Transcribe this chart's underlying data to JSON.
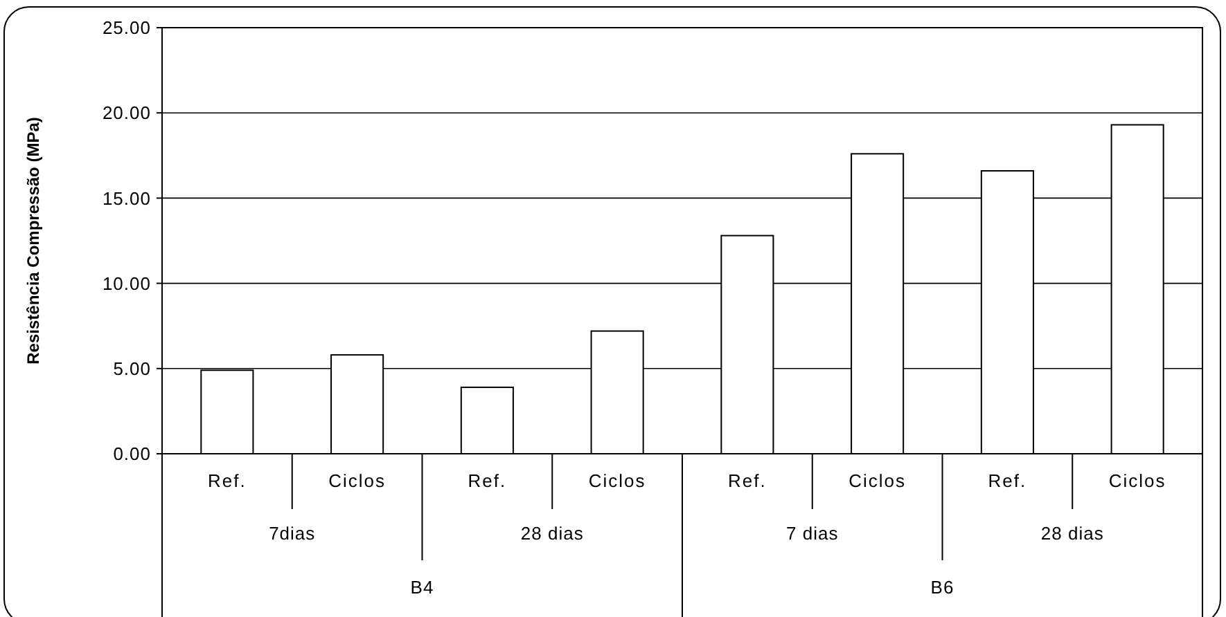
{
  "chart_data": {
    "type": "bar",
    "ylabel": "Resistência Compressão (MPa)",
    "categories": [
      "Ref.",
      "Ciclos",
      "Ref.",
      "Ciclos",
      "Ref.",
      "Ciclos",
      "Ref.",
      "Ciclos"
    ],
    "values": [
      4.9,
      5.8,
      3.9,
      7.2,
      12.8,
      17.6,
      16.6,
      19.3
    ],
    "color": "#ffffff",
    "ylim": [
      0,
      25
    ],
    "yticks": [
      {
        "value": 0,
        "label": "0.00"
      },
      {
        "value": 5,
        "label": "5.00"
      },
      {
        "value": 10,
        "label": "10.00"
      },
      {
        "value": 15,
        "label": "15.00"
      },
      {
        "value": 20,
        "label": "20.00"
      },
      {
        "value": 25,
        "label": "25.00"
      }
    ],
    "grid": "y",
    "annotations": [
      "7dias",
      "28 dias",
      "7 dias",
      "28 dias",
      "B4",
      "B6"
    ]
  }
}
